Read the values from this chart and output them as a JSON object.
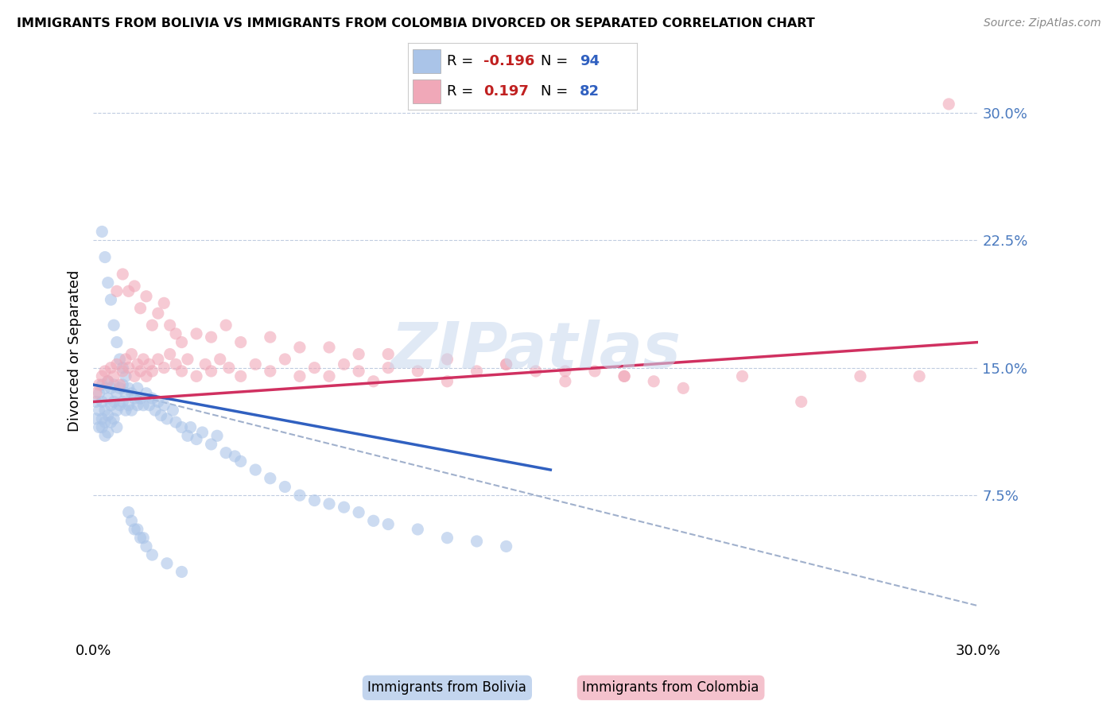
{
  "title": "IMMIGRANTS FROM BOLIVIA VS IMMIGRANTS FROM COLOMBIA DIVORCED OR SEPARATED CORRELATION CHART",
  "source": "Source: ZipAtlas.com",
  "ylabel": "Divorced or Separated",
  "xlim": [
    0.0,
    0.3
  ],
  "ylim": [
    -0.01,
    0.33
  ],
  "ytick_positions": [
    0.075,
    0.15,
    0.225,
    0.3
  ],
  "ytick_labels": [
    "7.5%",
    "15.0%",
    "22.5%",
    "30.0%"
  ],
  "bolivia_R": -0.196,
  "bolivia_N": 94,
  "colombia_R": 0.197,
  "colombia_N": 82,
  "bolivia_color": "#aac4e8",
  "colombia_color": "#f0a8b8",
  "bolivia_line_color": "#3060c0",
  "colombia_line_color": "#d03060",
  "dashed_line_color": "#a0b0cc",
  "watermark": "ZIPatlas",
  "background_color": "#ffffff",
  "bolivia_scatter_x": [
    0.001,
    0.001,
    0.002,
    0.002,
    0.002,
    0.003,
    0.003,
    0.003,
    0.003,
    0.004,
    0.004,
    0.004,
    0.004,
    0.005,
    0.005,
    0.005,
    0.005,
    0.006,
    0.006,
    0.006,
    0.007,
    0.007,
    0.007,
    0.008,
    0.008,
    0.008,
    0.009,
    0.009,
    0.01,
    0.01,
    0.011,
    0.011,
    0.012,
    0.012,
    0.013,
    0.013,
    0.014,
    0.015,
    0.015,
    0.016,
    0.017,
    0.018,
    0.019,
    0.02,
    0.021,
    0.022,
    0.023,
    0.024,
    0.025,
    0.027,
    0.028,
    0.03,
    0.032,
    0.033,
    0.035,
    0.037,
    0.04,
    0.042,
    0.045,
    0.048,
    0.05,
    0.055,
    0.06,
    0.065,
    0.07,
    0.075,
    0.08,
    0.085,
    0.09,
    0.095,
    0.1,
    0.11,
    0.12,
    0.13,
    0.14,
    0.003,
    0.004,
    0.005,
    0.006,
    0.007,
    0.008,
    0.009,
    0.01,
    0.011,
    0.012,
    0.013,
    0.014,
    0.015,
    0.016,
    0.017,
    0.018,
    0.02,
    0.025,
    0.03
  ],
  "bolivia_scatter_y": [
    0.13,
    0.12,
    0.135,
    0.125,
    0.115,
    0.14,
    0.13,
    0.12,
    0.115,
    0.138,
    0.125,
    0.118,
    0.11,
    0.142,
    0.132,
    0.122,
    0.112,
    0.138,
    0.128,
    0.118,
    0.14,
    0.13,
    0.12,
    0.135,
    0.125,
    0.115,
    0.138,
    0.128,
    0.14,
    0.13,
    0.135,
    0.125,
    0.138,
    0.128,
    0.135,
    0.125,
    0.132,
    0.138,
    0.128,
    0.132,
    0.128,
    0.135,
    0.128,
    0.132,
    0.125,
    0.13,
    0.122,
    0.128,
    0.12,
    0.125,
    0.118,
    0.115,
    0.11,
    0.115,
    0.108,
    0.112,
    0.105,
    0.11,
    0.1,
    0.098,
    0.095,
    0.09,
    0.085,
    0.08,
    0.075,
    0.072,
    0.07,
    0.068,
    0.065,
    0.06,
    0.058,
    0.055,
    0.05,
    0.048,
    0.045,
    0.23,
    0.215,
    0.2,
    0.19,
    0.175,
    0.165,
    0.155,
    0.15,
    0.145,
    0.065,
    0.06,
    0.055,
    0.055,
    0.05,
    0.05,
    0.045,
    0.04,
    0.035,
    0.03
  ],
  "colombia_scatter_x": [
    0.001,
    0.002,
    0.003,
    0.004,
    0.005,
    0.006,
    0.007,
    0.008,
    0.009,
    0.01,
    0.011,
    0.012,
    0.013,
    0.014,
    0.015,
    0.016,
    0.017,
    0.018,
    0.019,
    0.02,
    0.022,
    0.024,
    0.026,
    0.028,
    0.03,
    0.032,
    0.035,
    0.038,
    0.04,
    0.043,
    0.046,
    0.05,
    0.055,
    0.06,
    0.065,
    0.07,
    0.075,
    0.08,
    0.085,
    0.09,
    0.095,
    0.1,
    0.11,
    0.12,
    0.13,
    0.14,
    0.15,
    0.16,
    0.17,
    0.18,
    0.19,
    0.2,
    0.22,
    0.24,
    0.26,
    0.28,
    0.008,
    0.01,
    0.012,
    0.014,
    0.016,
    0.018,
    0.02,
    0.022,
    0.024,
    0.026,
    0.028,
    0.03,
    0.035,
    0.04,
    0.045,
    0.05,
    0.06,
    0.07,
    0.08,
    0.09,
    0.1,
    0.12,
    0.14,
    0.16,
    0.18,
    0.29
  ],
  "colombia_scatter_y": [
    0.135,
    0.14,
    0.145,
    0.148,
    0.142,
    0.15,
    0.145,
    0.152,
    0.14,
    0.148,
    0.155,
    0.15,
    0.158,
    0.145,
    0.152,
    0.148,
    0.155,
    0.145,
    0.152,
    0.148,
    0.155,
    0.15,
    0.158,
    0.152,
    0.148,
    0.155,
    0.145,
    0.152,
    0.148,
    0.155,
    0.15,
    0.145,
    0.152,
    0.148,
    0.155,
    0.145,
    0.15,
    0.145,
    0.152,
    0.148,
    0.142,
    0.15,
    0.148,
    0.142,
    0.148,
    0.152,
    0.148,
    0.142,
    0.148,
    0.145,
    0.142,
    0.138,
    0.145,
    0.13,
    0.145,
    0.145,
    0.195,
    0.205,
    0.195,
    0.198,
    0.185,
    0.192,
    0.175,
    0.182,
    0.188,
    0.175,
    0.17,
    0.165,
    0.17,
    0.168,
    0.175,
    0.165,
    0.168,
    0.162,
    0.162,
    0.158,
    0.158,
    0.155,
    0.152,
    0.148,
    0.145,
    0.305
  ],
  "bolivia_trend_x": [
    0.0,
    0.155
  ],
  "bolivia_trend_y": [
    0.14,
    0.09
  ],
  "dashed_trend_x": [
    0.0,
    0.3
  ],
  "dashed_trend_y": [
    0.14,
    0.01
  ],
  "colombia_trend_x": [
    0.0,
    0.3
  ],
  "colombia_trend_y": [
    0.13,
    0.165
  ]
}
